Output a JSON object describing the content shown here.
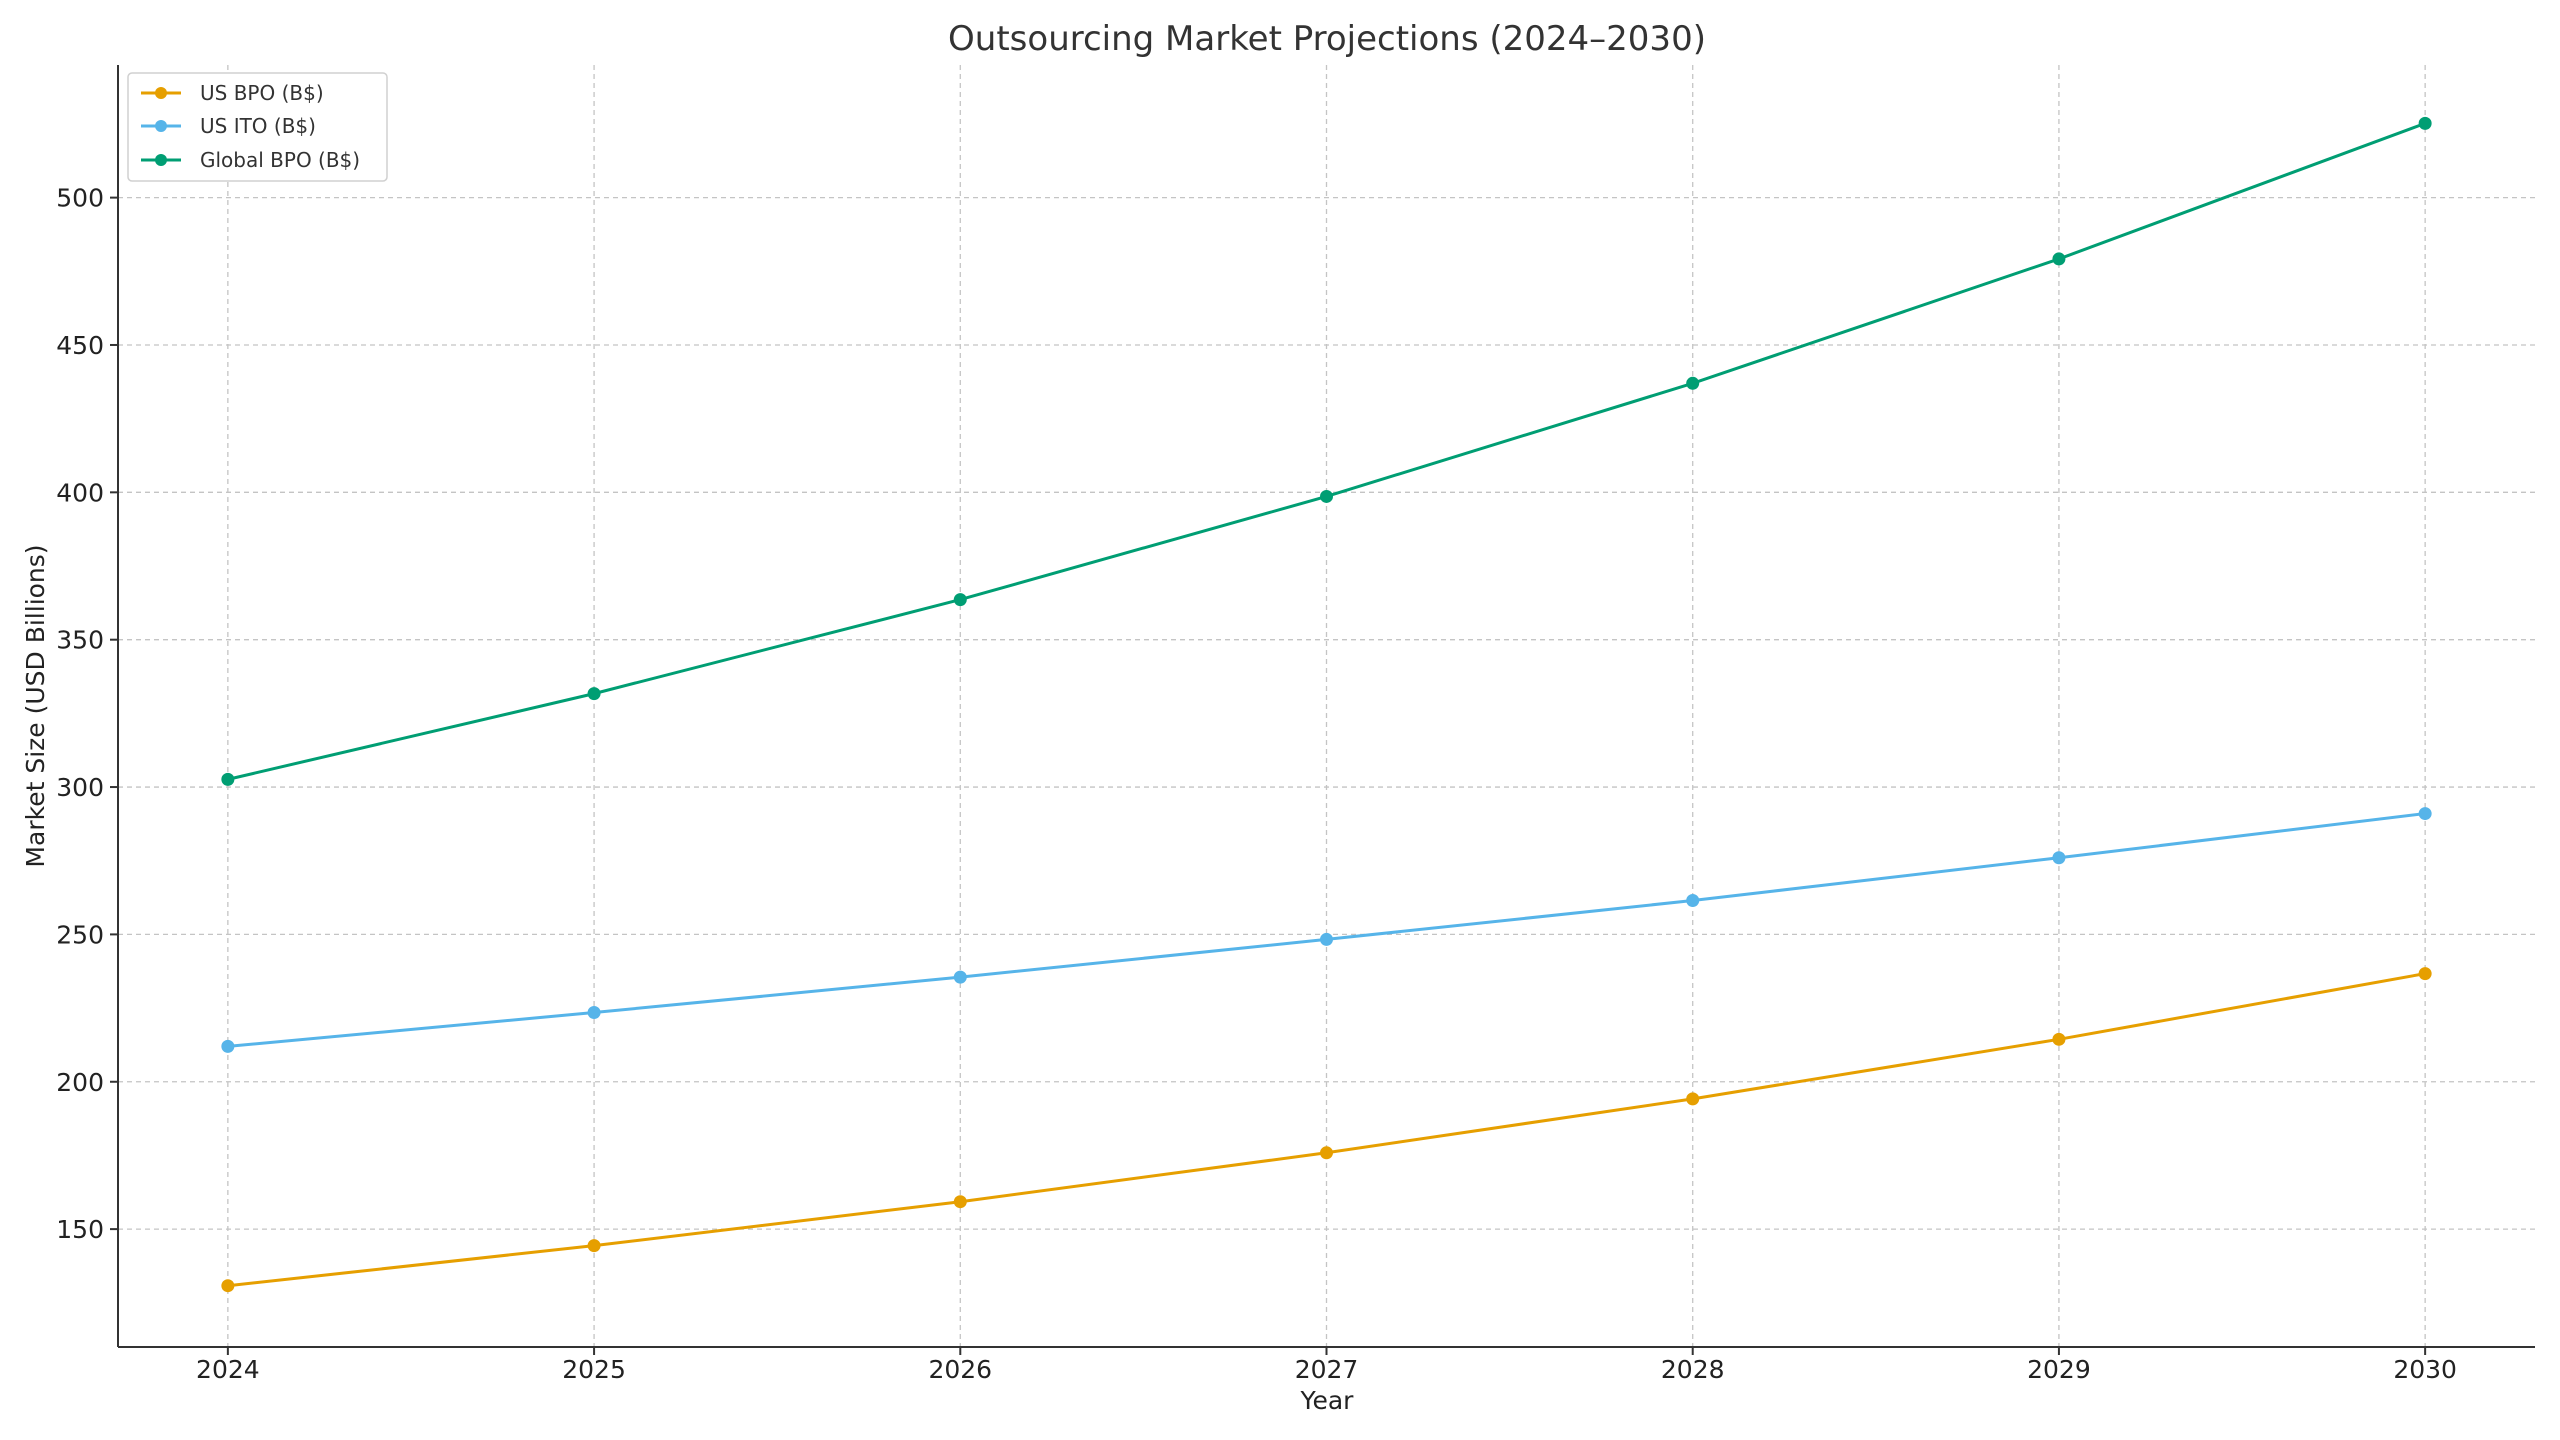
{
  "chart_data": {
    "type": "line",
    "title": "Outsourcing Market Projections (2024–2030)",
    "xlabel": "Year",
    "ylabel": "Market Size (USD Billions)",
    "categories": [
      "2024",
      "2025",
      "2026",
      "2027",
      "2028",
      "2029",
      "2030"
    ],
    "x": [
      2024,
      2025,
      2026,
      2027,
      2028,
      2029,
      2030
    ],
    "xlim": [
      2023.7,
      2030.3
    ],
    "ylim": [
      110,
      545
    ],
    "yticks": [
      150,
      200,
      250,
      300,
      350,
      400,
      450,
      500
    ],
    "grid": true,
    "legend_position": "top-left",
    "series": [
      {
        "name": "US BPO (B$)",
        "color": "#E69F00",
        "values": [
          130.8,
          144.4,
          159.3,
          175.9,
          194.2,
          214.4,
          236.7
        ]
      },
      {
        "name": "US ITO (B$)",
        "color": "#56B4E9",
        "values": [
          212.0,
          223.5,
          235.5,
          248.3,
          261.5,
          276.0,
          291.0
        ]
      },
      {
        "name": "Global BPO (B$)",
        "color": "#009E73",
        "values": [
          302.6,
          331.7,
          363.6,
          398.6,
          437.0,
          479.2,
          525.2
        ]
      }
    ]
  }
}
